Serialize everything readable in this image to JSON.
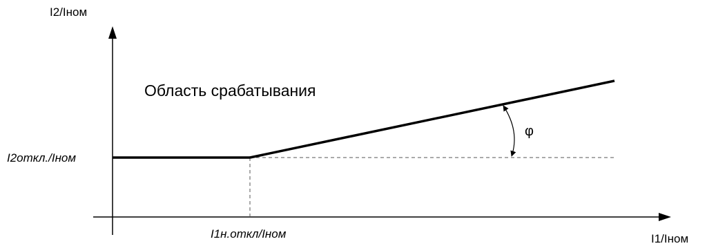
{
  "diagram": {
    "y_axis_label": "I2/Iном",
    "x_axis_label": "I1/Iном",
    "threshold_y_label": "I2откл./Iном",
    "threshold_x_label": "I1н.откл/Iном",
    "region_label": "Область срабатывания",
    "angle_label": "φ",
    "line_color": "#000000",
    "dash_color": "#555555"
  }
}
